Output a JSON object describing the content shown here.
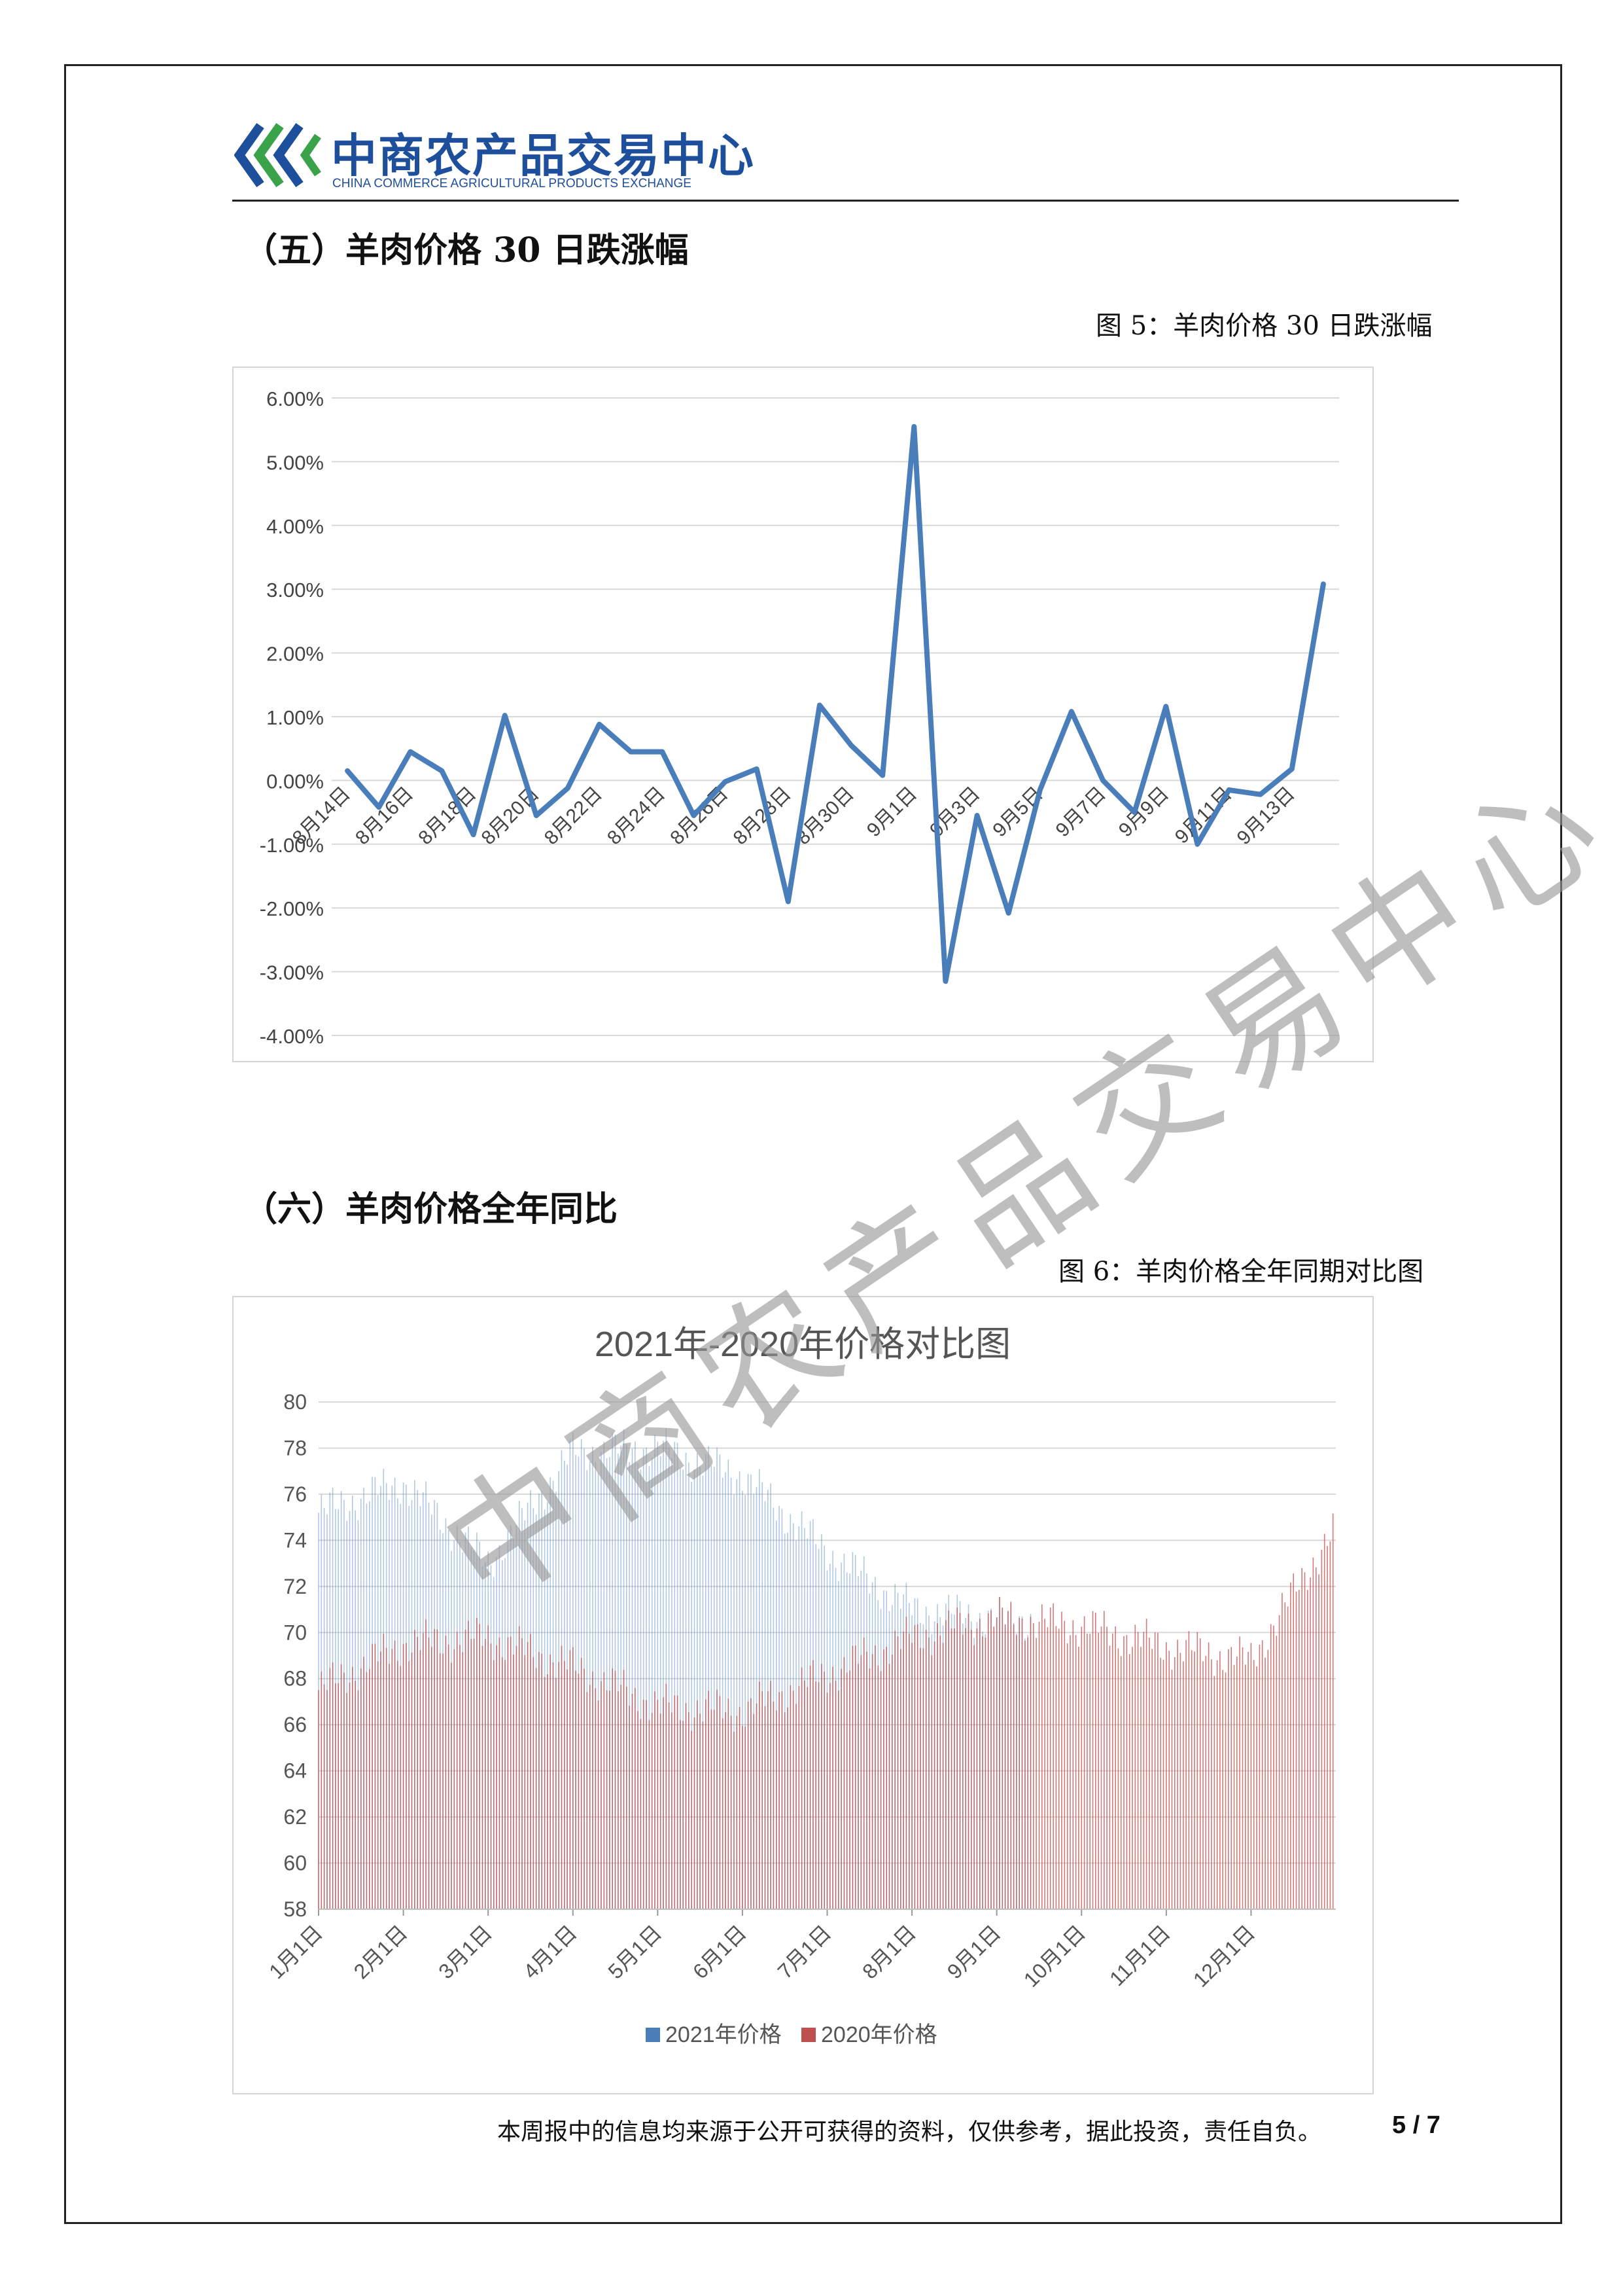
{
  "header": {
    "logo_cn": "中商农产品交易中心",
    "logo_en": "CHINA COMMERCE AGRICULTURAL PRODUCTS EXCHANGE"
  },
  "section5": {
    "title": "（五）羊肉价格 30 日跌涨幅",
    "caption": "图  5：羊肉价格 30 日跌涨幅"
  },
  "section6": {
    "title": "（六）羊肉价格全年同比",
    "caption": "图 6：羊肉价格全年同期对比图"
  },
  "footer": {
    "disclaimer": "本周报中的信息均来源于公开可获得的资料，仅供参考，据此投资，责任自负。",
    "page": "5 / 7"
  },
  "watermark": "中商农产品交易中心",
  "colors": {
    "blue": "#4a7ebb",
    "red": "#c0504d",
    "logo": "#1e4f9c"
  },
  "chart_data": [
    {
      "type": "line",
      "title": "",
      "xlabel": "",
      "ylabel": "",
      "ylim": [
        -4,
        6
      ],
      "yticks": [
        "-4.00%",
        "-3.00%",
        "-2.00%",
        "-1.00%",
        "0.00%",
        "1.00%",
        "2.00%",
        "3.00%",
        "4.00%",
        "5.00%",
        "6.00%"
      ],
      "xtick_labels": [
        "8月14日",
        "8月16日",
        "8月18日",
        "8月20日",
        "8月22日",
        "8月24日",
        "8月26日",
        "8月28日",
        "8月30日",
        "9月1日",
        "9月3日",
        "9月5日",
        "9月7日",
        "9月9日",
        "9月11日",
        "9月13日"
      ],
      "grid": true,
      "legend": "none",
      "series": [
        {
          "color": "#4a7ebb",
          "values": [
            0.15,
            -0.42,
            0.45,
            0.15,
            -0.85,
            1.02,
            -0.55,
            -0.12,
            0.88,
            0.45,
            0.45,
            -0.55,
            -0.02,
            0.18,
            -1.9,
            1.18,
            0.55,
            0.08,
            5.55,
            -3.15,
            -0.55,
            -2.08,
            -0.15,
            1.08,
            0.0,
            -0.5,
            1.16,
            -1.0,
            -0.15,
            -0.22,
            0.18,
            3.08
          ]
        }
      ]
    },
    {
      "type": "bar",
      "title": "2021年-2020年价格对比图",
      "xlabel": "",
      "ylabel": "",
      "ylim": [
        58,
        80
      ],
      "yticks": [
        "58",
        "60",
        "62",
        "64",
        "66",
        "68",
        "70",
        "72",
        "74",
        "76",
        "78",
        "80"
      ],
      "categories": [
        "1月1日",
        "2月1日",
        "3月1日",
        "4月1日",
        "5月1日",
        "6月1日",
        "7月1日",
        "8月1日",
        "9月1日",
        "10月1日",
        "11月1日",
        "12月1日"
      ],
      "grid": true,
      "legend": "bottom",
      "series": [
        {
          "name": "2021年价格",
          "color": "#4a7ebb",
          "monthly_start_values": [
            75.2,
            76.5,
            73.0,
            77.8,
            78.0,
            76.8,
            73.5,
            71.0,
            70.6
          ],
          "ends_month": "9月"
        },
        {
          "name": "2020年价格",
          "color": "#c0504d",
          "monthly_start_values": [
            67.5,
            69.5,
            69.8,
            68.5,
            66.8,
            66.6,
            68.2,
            69.8,
            70.6,
            70.3,
            69.4,
            68.8
          ],
          "year_end_value": 74.6
        }
      ]
    }
  ]
}
